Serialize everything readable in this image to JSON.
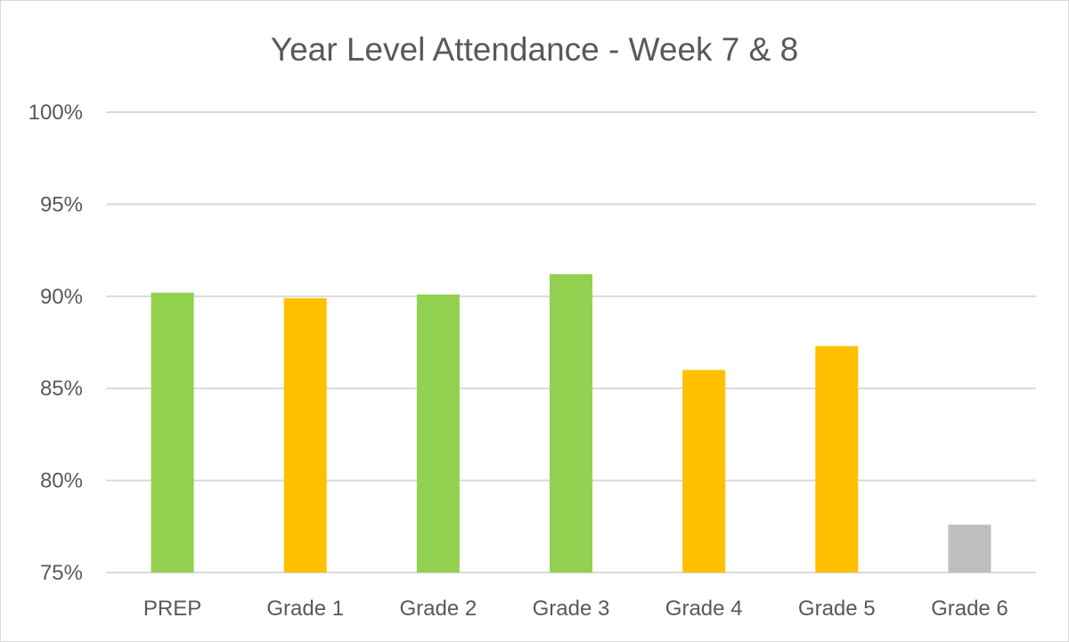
{
  "chart_data": {
    "type": "bar",
    "title": "Year Level Attendance - Week 7 & 8",
    "xlabel": "",
    "ylabel": "",
    "categories": [
      "PREP",
      "Grade 1",
      "Grade 2",
      "Grade 3",
      "Grade 4",
      "Grade 5",
      "Grade 6"
    ],
    "values": [
      90.2,
      89.9,
      90.1,
      91.2,
      86.0,
      87.3,
      77.6
    ],
    "bar_colors": [
      "#92d050",
      "#ffc000",
      "#92d050",
      "#92d050",
      "#ffc000",
      "#ffc000",
      "#bfbfbf"
    ],
    "ylim": [
      75,
      100
    ],
    "yticks": [
      "75%",
      "80%",
      "85%",
      "90%",
      "95%",
      "100%"
    ],
    "ytick_values": [
      75,
      80,
      85,
      90,
      95,
      100
    ],
    "grid": true,
    "legend": "none",
    "gridline_color": "#d9d9d9"
  }
}
